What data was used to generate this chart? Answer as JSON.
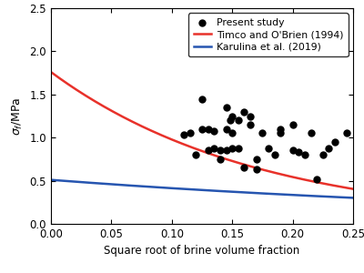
{
  "scatter_x": [
    0.11,
    0.115,
    0.12,
    0.125,
    0.125,
    0.13,
    0.13,
    0.135,
    0.135,
    0.14,
    0.14,
    0.145,
    0.145,
    0.145,
    0.148,
    0.15,
    0.15,
    0.15,
    0.155,
    0.155,
    0.16,
    0.16,
    0.165,
    0.165,
    0.17,
    0.17,
    0.175,
    0.18,
    0.185,
    0.19,
    0.19,
    0.2,
    0.2,
    0.205,
    0.21,
    0.215,
    0.22,
    0.225,
    0.23,
    0.235,
    0.245
  ],
  "scatter_y": [
    1.03,
    1.05,
    0.8,
    1.1,
    1.45,
    0.85,
    1.1,
    0.88,
    1.08,
    0.75,
    0.85,
    0.85,
    1.1,
    1.35,
    1.2,
    0.88,
    1.25,
    1.05,
    0.88,
    1.2,
    0.65,
    1.3,
    1.15,
    1.25,
    0.63,
    0.75,
    1.05,
    0.88,
    0.8,
    1.05,
    1.1,
    0.85,
    1.15,
    0.83,
    0.8,
    1.05,
    0.52,
    0.8,
    0.88,
    0.95,
    1.05
  ],
  "timco_a": 1.76,
  "timco_b": 5.88,
  "karulina_a": 0.51,
  "karulina_b": 2.1,
  "x_min": 0.0,
  "x_max": 0.25,
  "y_min": 0.0,
  "y_max": 2.5,
  "xlabel": "Square root of brine volume fraction",
  "ylabel": "σⁱ/MPa",
  "legend_labels": [
    "Present study",
    "Timco and O'Brien (1994)",
    "Karulina et al. (2019)"
  ],
  "scatter_color": "black",
  "timco_color": "#e8312a",
  "karulina_color": "#2655b0",
  "line_width": 1.8,
  "marker_size": 5,
  "background_color": "#ffffff"
}
